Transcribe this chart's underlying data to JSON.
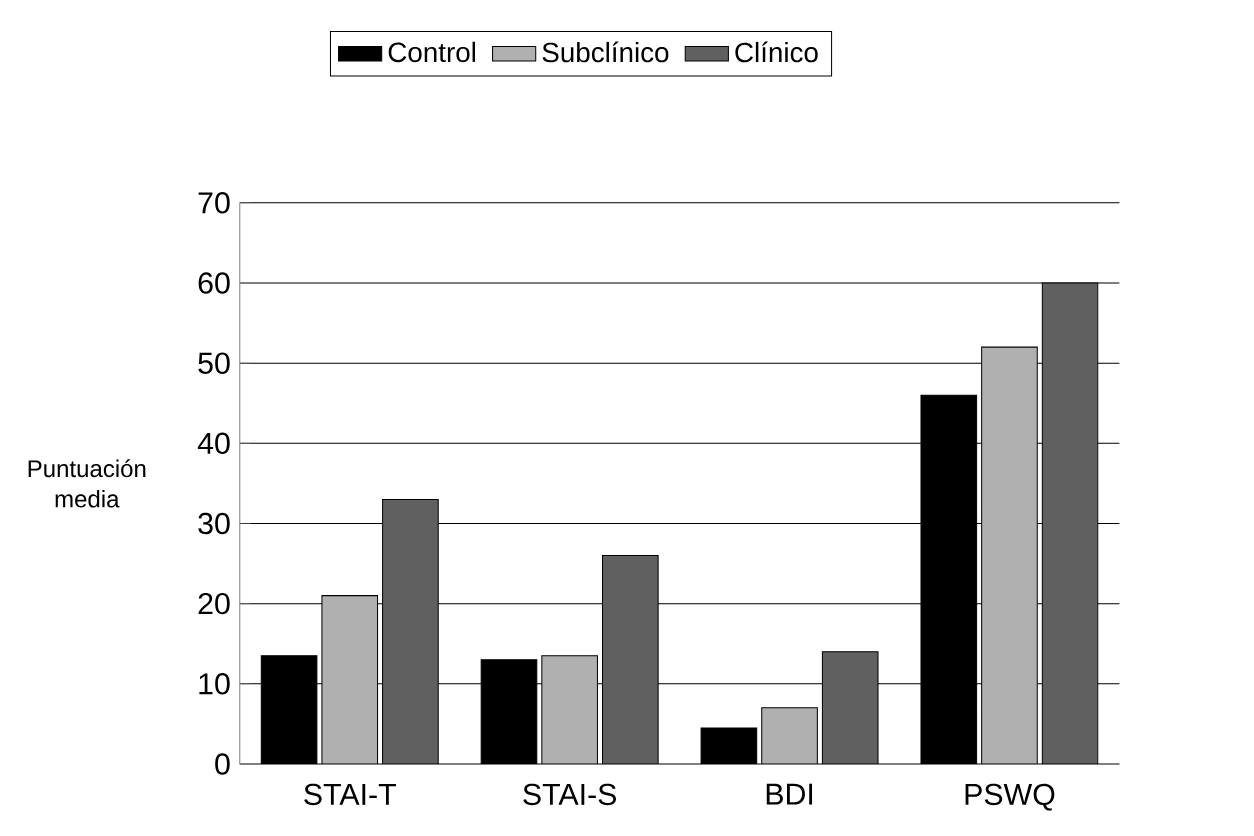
{
  "chart_data": {
    "type": "bar",
    "ylabel": "Puntuación media",
    "categories": [
      "STAI-T",
      "STAI-S",
      "BDI",
      "PSWQ"
    ],
    "series": [
      {
        "name": "Control",
        "color": "#000000",
        "values": [
          13.5,
          13,
          4.5,
          46
        ]
      },
      {
        "name": "Subclínico",
        "color": "#b0b0b0",
        "values": [
          21,
          13.5,
          7,
          52
        ]
      },
      {
        "name": "Clínico",
        "color": "#606060",
        "values": [
          33,
          26,
          14,
          60
        ]
      }
    ],
    "ylim": [
      0,
      70
    ],
    "yticks": [
      0,
      10,
      20,
      30,
      40,
      50,
      60,
      70
    ],
    "grid": "y",
    "legend": "top"
  }
}
